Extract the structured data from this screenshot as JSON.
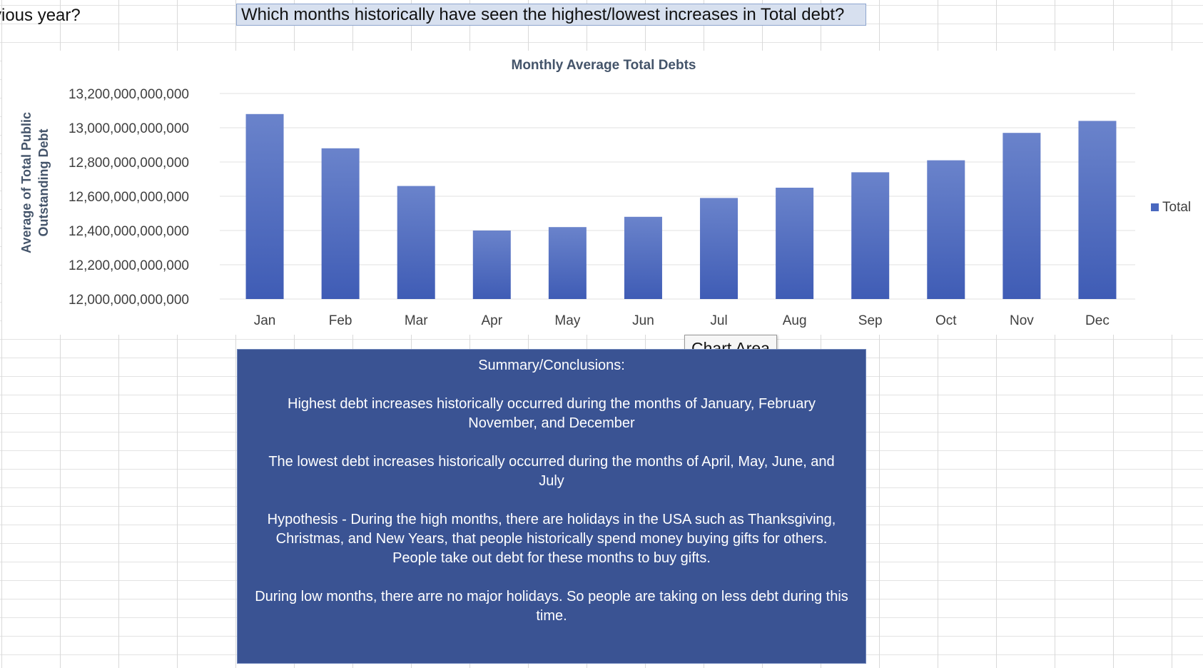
{
  "sheet": {
    "left_cell_text": "vious year?",
    "question": "Which months historically have seen the highest/lowest increases in Total debt?"
  },
  "chart_data": {
    "type": "bar",
    "title": "Monthly Average Total Debts",
    "xlabel": "",
    "ylabel_lines": [
      "Average of Total Public",
      "Outstanding Debt"
    ],
    "categories": [
      "Jan",
      "Feb",
      "Mar",
      "Apr",
      "May",
      "Jun",
      "Jul",
      "Aug",
      "Sep",
      "Oct",
      "Nov",
      "Dec"
    ],
    "series": [
      {
        "name": "Total",
        "values": [
          13080000000000,
          12880000000000,
          12660000000000,
          12400000000000,
          12420000000000,
          12480000000000,
          12590000000000,
          12650000000000,
          12740000000000,
          12810000000000,
          12970000000000,
          13040000000000
        ]
      }
    ],
    "ylim": [
      12000000000000,
      13200000000000
    ],
    "yticks": [
      12000000000000,
      12200000000000,
      12400000000000,
      12600000000000,
      12800000000000,
      13000000000000,
      13200000000000
    ],
    "ytick_labels": [
      "12,000,000,000,000",
      "12,200,000,000,000",
      "12,400,000,000,000",
      "12,600,000,000,000",
      "12,800,000,000,000",
      "13,000,000,000,000",
      "13,200,000,000,000"
    ],
    "grid": true,
    "legend_position": "right",
    "colors": {
      "bar_top": "#6a83cb",
      "bar_bottom": "#3f5cb5",
      "grid": "#e1e1e1",
      "text": "#3f3f3f"
    }
  },
  "tooltip": {
    "label": "Chart Area"
  },
  "summary": {
    "title": "Summary/Conclusions:",
    "paragraphs": [
      "Highest debt increases historically occurred during the months of January, February November, and December",
      "The lowest debt increases historically occurred during the months of April, May, June, and July",
      "Hypothesis - During the high months, there are holidays in the USA such as Thanksgiving, Christmas, and New Years, that people historically spend money buying gifts for others. People take out debt for these months to buy gifts.",
      "During low months, there arre no major holidays. So people are taking on less debt during this time."
    ]
  }
}
